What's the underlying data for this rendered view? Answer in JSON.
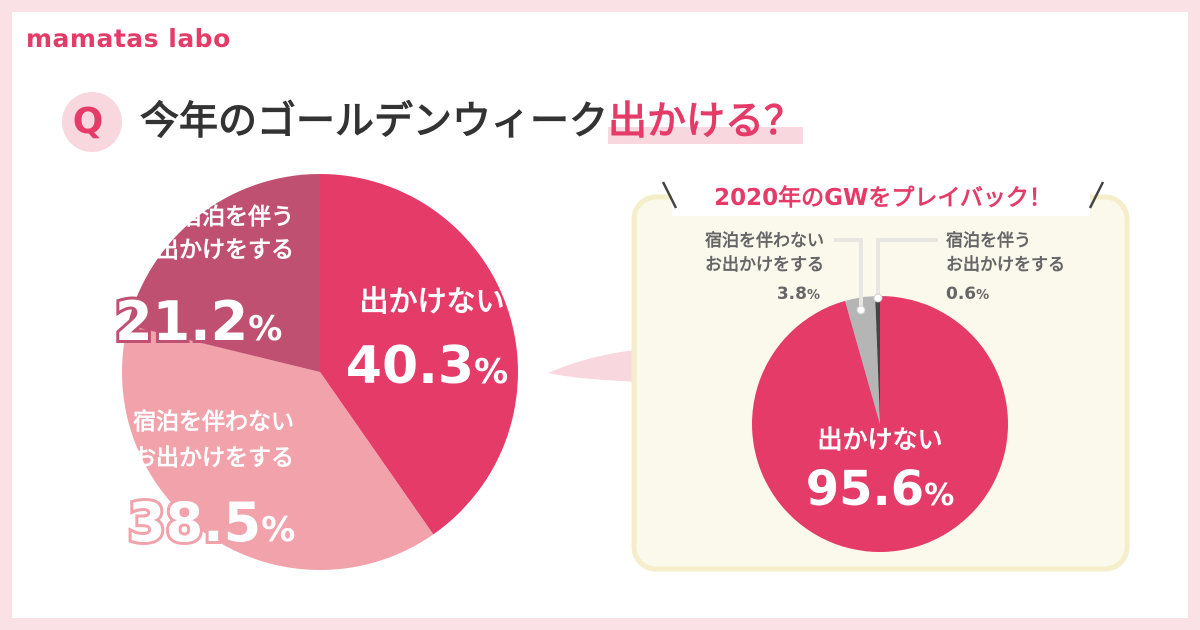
{
  "brand": {
    "logo": "mamatas labo",
    "q_mark": "Q"
  },
  "question": {
    "main": "今年のゴールデンウィーク",
    "highlight": "出かける？"
  },
  "colors": {
    "accent": "#e43b68",
    "light_pink": "#f2a2ab",
    "mauve": "#c05071",
    "panel_bg": "#fbf9ec",
    "panel_border": "#f4eecb",
    "gray": "#b5b5b5",
    "dark": "#444444"
  },
  "chart_data": [
    {
      "type": "pie",
      "slices": [
        {
          "label_line1": "出かけない",
          "label_line2": "",
          "value": 40.3,
          "num": "40.3",
          "unit": "%",
          "color": "#e43b68"
        },
        {
          "label_line1": "宿泊を伴わない",
          "label_line2": "お出かけをする",
          "value": 38.5,
          "num": "38.5",
          "unit": "%",
          "color": "#f2a2ab"
        },
        {
          "label_line1": "宿泊を伴う",
          "label_line2": "お出かけをする",
          "value": 21.2,
          "num": "21.2",
          "unit": "%",
          "color": "#c05071"
        }
      ]
    },
    {
      "type": "pie",
      "title": "2020年のGWをプレイバック！",
      "slices": [
        {
          "label_line1": "出かけない",
          "label_line2": "",
          "value": 95.6,
          "num": "95.6",
          "unit": "%",
          "color": "#e43b68"
        },
        {
          "label_line1": "宿泊を伴わない",
          "label_line2": "お出かけをする",
          "value": 3.8,
          "num": "3.8",
          "unit": "%",
          "color": "#b5b5b5"
        },
        {
          "label_line1": "宿泊を伴う",
          "label_line2": "お出かけをする",
          "value": 0.6,
          "num": "0.6",
          "unit": "%",
          "color": "#444444"
        }
      ]
    }
  ]
}
